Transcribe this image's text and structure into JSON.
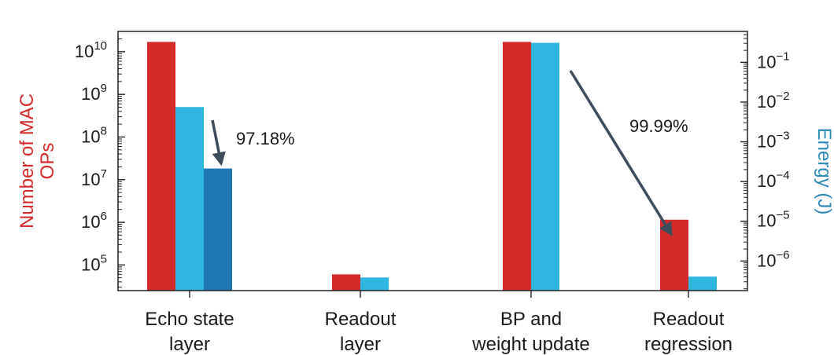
{
  "chart_data": {
    "type": "bar",
    "categories": [
      [
        "Echo state",
        "layer"
      ],
      [
        "Readout",
        "layer"
      ],
      [
        "BP and",
        "weight update"
      ],
      [
        "Readout",
        "regression"
      ]
    ],
    "left_axis": {
      "label": [
        "Number of MAC",
        "OPs"
      ],
      "scale": "log",
      "range": [
        25000,
        30000000000
      ],
      "ticks": [
        {
          "value": 100000,
          "base": "10",
          "exp": "5"
        },
        {
          "value": 1000000,
          "base": "10",
          "exp": "6"
        },
        {
          "value": 10000000,
          "base": "10",
          "exp": "7"
        },
        {
          "value": 100000000,
          "base": "10",
          "exp": "8"
        },
        {
          "value": 1000000000,
          "base": "10",
          "exp": "9"
        },
        {
          "value": 10000000000,
          "base": "10",
          "exp": "10"
        }
      ],
      "color": "#d42a2a"
    },
    "right_axis": {
      "label": "Energy (J)",
      "scale": "log",
      "range": [
        1.8e-07,
        0.6
      ],
      "ticks": [
        {
          "value": 1e-06,
          "base": "10",
          "exp": "−6"
        },
        {
          "value": 1e-05,
          "base": "10",
          "exp": "−5"
        },
        {
          "value": 0.0001,
          "base": "10",
          "exp": "−4"
        },
        {
          "value": 0.001,
          "base": "10",
          "exp": "−3"
        },
        {
          "value": 0.01,
          "base": "10",
          "exp": "−2"
        },
        {
          "value": 0.1,
          "base": "10",
          "exp": "−1"
        }
      ],
      "color": "#2a8ab8"
    },
    "series": [
      {
        "axis": "left",
        "color": "#d42a2a",
        "values": [
          17000000000,
          60000,
          17000000000,
          1150000
        ]
      },
      {
        "axis": "right",
        "color": "#2cb6e0",
        "values": [
          0.0075,
          3.85e-07,
          0.31,
          4.05e-07
        ]
      },
      {
        "axis": "right",
        "color": "#1f78b4",
        "values": [
          0.000213,
          null,
          null,
          null
        ]
      }
    ],
    "annotations": [
      {
        "text": "97.18%",
        "category": 0
      },
      {
        "text": "99.99%",
        "category": 2
      }
    ],
    "legend": "none",
    "grid": false
  }
}
